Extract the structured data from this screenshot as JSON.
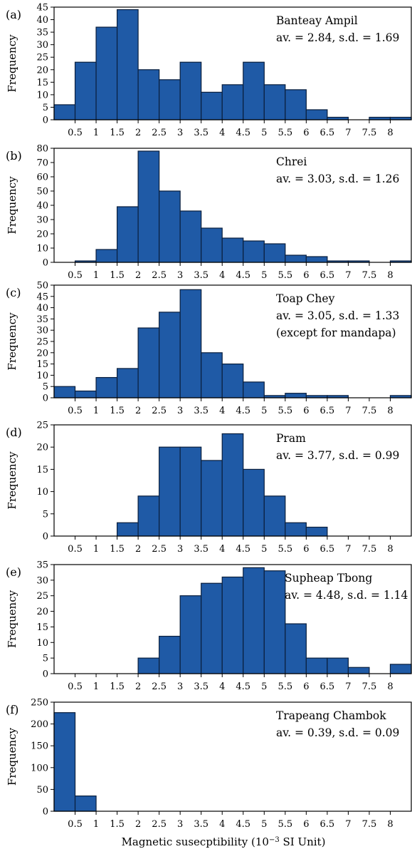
{
  "x_axis": {
    "ticks": [
      0.5,
      1,
      1.5,
      2,
      2.5,
      3,
      3.5,
      4,
      4.5,
      5,
      5.5,
      6,
      6.5,
      7,
      7.5,
      8
    ],
    "tick_labels": [
      "0.5",
      "1",
      "1.5",
      "2",
      "2.5",
      "3",
      "3.5",
      "4",
      "4.5",
      "5",
      "5.5",
      "6",
      "6.5",
      "7",
      "7.5",
      "8"
    ],
    "label_main": "Magnetic susecptibility (10",
    "label_sup": "−3",
    "label_end": " SI Unit)"
  },
  "ylabel": "Frequency",
  "chart_data": [
    {
      "type": "bar",
      "panel": "(a)",
      "site": "Banteay Ampil",
      "stats": "av. = 2.84, s.d. = 1.69",
      "note": "",
      "bin_width": 0.5,
      "bin_starts": [
        0,
        0.5,
        1,
        1.5,
        2,
        2.5,
        3,
        3.5,
        4,
        4.5,
        5,
        5.5,
        6,
        6.5,
        7,
        7.5,
        8
      ],
      "values": [
        6,
        23,
        37,
        44,
        20,
        16,
        23,
        11,
        14,
        23,
        14,
        12,
        4,
        1,
        0,
        1,
        1
      ],
      "ylim": [
        0,
        45
      ],
      "yticks": [
        0,
        5,
        10,
        15,
        20,
        25,
        30,
        35,
        40,
        45
      ]
    },
    {
      "type": "bar",
      "panel": "(b)",
      "site": "Chrei",
      "stats": "av. = 3.03, s.d. = 1.26",
      "note": "",
      "bin_width": 0.5,
      "bin_starts": [
        0,
        0.5,
        1,
        1.5,
        2,
        2.5,
        3,
        3.5,
        4,
        4.5,
        5,
        5.5,
        6,
        6.5,
        7,
        7.5,
        8
      ],
      "values": [
        0,
        1,
        9,
        39,
        78,
        50,
        36,
        24,
        17,
        15,
        13,
        5,
        4,
        1,
        1,
        0,
        1
      ],
      "ylim": [
        0,
        80
      ],
      "yticks": [
        0,
        10,
        20,
        30,
        40,
        50,
        60,
        70,
        80
      ]
    },
    {
      "type": "bar",
      "panel": "(c)",
      "site": "Toap Chey",
      "stats": "av. = 3.05, s.d. = 1.33",
      "note": "(except for mandapa)",
      "bin_width": 0.5,
      "bin_starts": [
        0,
        0.5,
        1,
        1.5,
        2,
        2.5,
        3,
        3.5,
        4,
        4.5,
        5,
        5.5,
        6,
        6.5,
        7,
        7.5,
        8
      ],
      "values": [
        5,
        3,
        9,
        13,
        31,
        38,
        48,
        20,
        15,
        7,
        1,
        2,
        1,
        1,
        0,
        0,
        1
      ],
      "ylim": [
        0,
        50
      ],
      "yticks": [
        0,
        5,
        10,
        15,
        20,
        25,
        30,
        35,
        40,
        45,
        50
      ]
    },
    {
      "type": "bar",
      "panel": "(d)",
      "site": "Pram",
      "stats": "av. = 3.77, s.d. = 0.99",
      "note": "",
      "bin_width": 0.5,
      "bin_starts": [
        0,
        0.5,
        1,
        1.5,
        2,
        2.5,
        3,
        3.5,
        4,
        4.5,
        5,
        5.5,
        6,
        6.5,
        7,
        7.5,
        8
      ],
      "values": [
        0,
        0,
        0,
        3,
        9,
        20,
        20,
        17,
        23,
        15,
        9,
        3,
        2,
        0,
        0,
        0,
        0
      ],
      "ylim": [
        0,
        25
      ],
      "yticks": [
        0,
        5,
        10,
        15,
        20,
        25
      ]
    },
    {
      "type": "bar",
      "panel": "(e)",
      "site": "Supheap Tbong",
      "stats": "av. = 4.48, s.d. = 1.14",
      "note": "",
      "bin_width": 0.5,
      "bin_starts": [
        0,
        0.5,
        1,
        1.5,
        2,
        2.5,
        3,
        3.5,
        4,
        4.5,
        5,
        5.5,
        6,
        6.5,
        7,
        7.5,
        8
      ],
      "values": [
        0,
        0,
        0,
        0,
        5,
        12,
        25,
        29,
        31,
        34,
        33,
        16,
        5,
        5,
        2,
        0,
        3
      ],
      "ylim": [
        0,
        35
      ],
      "yticks": [
        0,
        5,
        10,
        15,
        20,
        25,
        30,
        35
      ]
    },
    {
      "type": "bar",
      "panel": "(f)",
      "site": "Trapeang Chambok",
      "stats": "av. = 0.39, s.d. = 0.09",
      "note": "",
      "bin_width": 0.5,
      "bin_starts": [
        0,
        0.5,
        1,
        1.5,
        2,
        2.5,
        3,
        3.5,
        4,
        4.5,
        5,
        5.5,
        6,
        6.5,
        7,
        7.5,
        8
      ],
      "values": [
        226,
        35,
        0,
        0,
        0,
        0,
        0,
        0,
        0,
        0,
        0,
        0,
        0,
        0,
        0,
        0,
        0
      ],
      "ylim": [
        0,
        250
      ],
      "yticks": [
        0,
        50,
        100,
        150,
        200,
        250
      ]
    }
  ],
  "colors": {
    "bar_fill": "#1f5aa6",
    "bar_stroke": "#0a1f3d",
    "axis": "#000000",
    "text": "#111111"
  }
}
